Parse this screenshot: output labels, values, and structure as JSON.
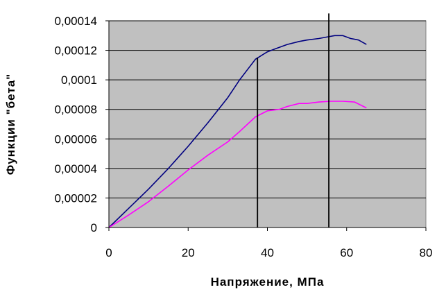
{
  "chart_data": {
    "type": "line",
    "xlabel": "Напряжение, МПа",
    "ylabel": "Функции \"бета\"",
    "xlim": [
      0,
      80
    ],
    "ylim": [
      0,
      0.00014
    ],
    "x_ticks": [
      0,
      20,
      40,
      60,
      80
    ],
    "x_tick_labels": [
      "0",
      "20",
      "40",
      "60",
      "80"
    ],
    "y_ticks": [
      0,
      2e-05,
      4e-05,
      6e-05,
      8e-05,
      0.0001,
      0.00012,
      0.00014
    ],
    "y_tick_labels": [
      "0",
      "0,00002",
      "0,00004",
      "0,00006",
      "0,00008",
      "0,0001",
      "0,00012",
      "0,00014"
    ],
    "grid": "horizontal",
    "plot_background": "#c0c0c0",
    "series": [
      {
        "color": "#000080",
        "points": [
          [
            0,
            0
          ],
          [
            5,
            1.3e-05
          ],
          [
            10,
            2.6e-05
          ],
          [
            15,
            4e-05
          ],
          [
            20,
            5.5e-05
          ],
          [
            25,
            7.1e-05
          ],
          [
            30,
            8.8e-05
          ],
          [
            33,
            0.0001
          ],
          [
            35,
            0.000107
          ],
          [
            37,
            0.000114
          ],
          [
            40,
            0.000119
          ],
          [
            42,
            0.000121
          ],
          [
            45,
            0.000124
          ],
          [
            48,
            0.000126
          ],
          [
            50,
            0.000127
          ],
          [
            53,
            0.000128
          ],
          [
            55,
            0.000129
          ],
          [
            57,
            0.00013
          ],
          [
            59,
            0.00013
          ],
          [
            61,
            0.000128
          ],
          [
            63,
            0.000127
          ],
          [
            65,
            0.000124
          ]
        ]
      },
      {
        "color": "#ff00ff",
        "points": [
          [
            0,
            0
          ],
          [
            5,
            8.5e-06
          ],
          [
            10,
            1.75e-05
          ],
          [
            15,
            2.8e-05
          ],
          [
            20,
            3.9e-05
          ],
          [
            25,
            4.9e-05
          ],
          [
            30,
            5.8e-05
          ],
          [
            33,
            6.5e-05
          ],
          [
            35,
            7e-05
          ],
          [
            37,
            7.5e-05
          ],
          [
            40,
            7.9e-05
          ],
          [
            43,
            8e-05
          ],
          [
            45,
            8.2e-05
          ],
          [
            48,
            8.4e-05
          ],
          [
            50,
            8.4e-05
          ],
          [
            53,
            8.5e-05
          ],
          [
            56,
            8.55e-05
          ],
          [
            59,
            8.55e-05
          ],
          [
            62,
            8.5e-05
          ],
          [
            65,
            8.1e-05
          ]
        ]
      }
    ],
    "vertical_markers": [
      {
        "x": 37.5,
        "y_from": 0,
        "y_to": 0.000115,
        "color": "#000000"
      },
      {
        "x": 55.5,
        "y_from": 0,
        "y_to": 0.000145,
        "color": "#000000"
      }
    ]
  }
}
